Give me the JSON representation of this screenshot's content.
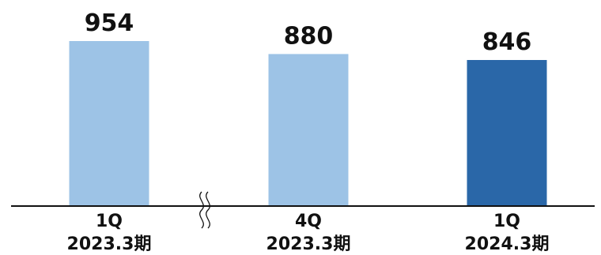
{
  "chart_data": {
    "type": "bar",
    "title": "",
    "xlabel": "",
    "ylabel": "",
    "axis_break_between": [
      0,
      1
    ],
    "categories": [
      {
        "quarter": "1Q",
        "period": "2023.3期"
      },
      {
        "quarter": "4Q",
        "period": "2023.3期"
      },
      {
        "quarter": "1Q",
        "period": "2024.3期"
      }
    ],
    "values": [
      954,
      880,
      846
    ],
    "data_labels": [
      "954",
      "880",
      "846"
    ],
    "colors": [
      "#9dc3e6",
      "#9dc3e6",
      "#2a67a8"
    ],
    "axis_color": "#111111",
    "grid": false,
    "legend": "none"
  }
}
